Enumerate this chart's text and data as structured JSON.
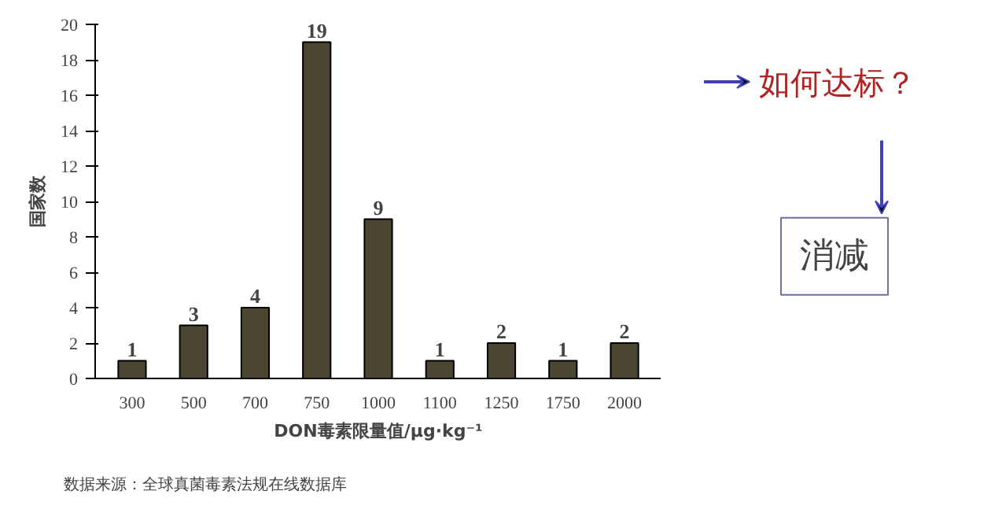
{
  "chart_data": {
    "type": "bar",
    "ylabel": "国家数",
    "xlabel": "DON毒素限量值/μg·kg⁻¹",
    "categories": [
      "300",
      "500",
      "700",
      "750",
      "1000",
      "1100",
      "1250",
      "1750",
      "2000"
    ],
    "values": [
      1,
      3,
      4,
      19,
      9,
      1,
      2,
      1,
      2
    ],
    "color": "#4a4632",
    "ylim": [
      0,
      20
    ],
    "yticks": [
      0,
      2,
      4,
      6,
      8,
      10,
      12,
      14,
      16,
      18,
      20
    ],
    "grid": false,
    "data_labels": true,
    "annotations": [
      "如何达标？",
      "消减",
      "数据来源：全球真菌毒素法规在线数据库"
    ]
  }
}
